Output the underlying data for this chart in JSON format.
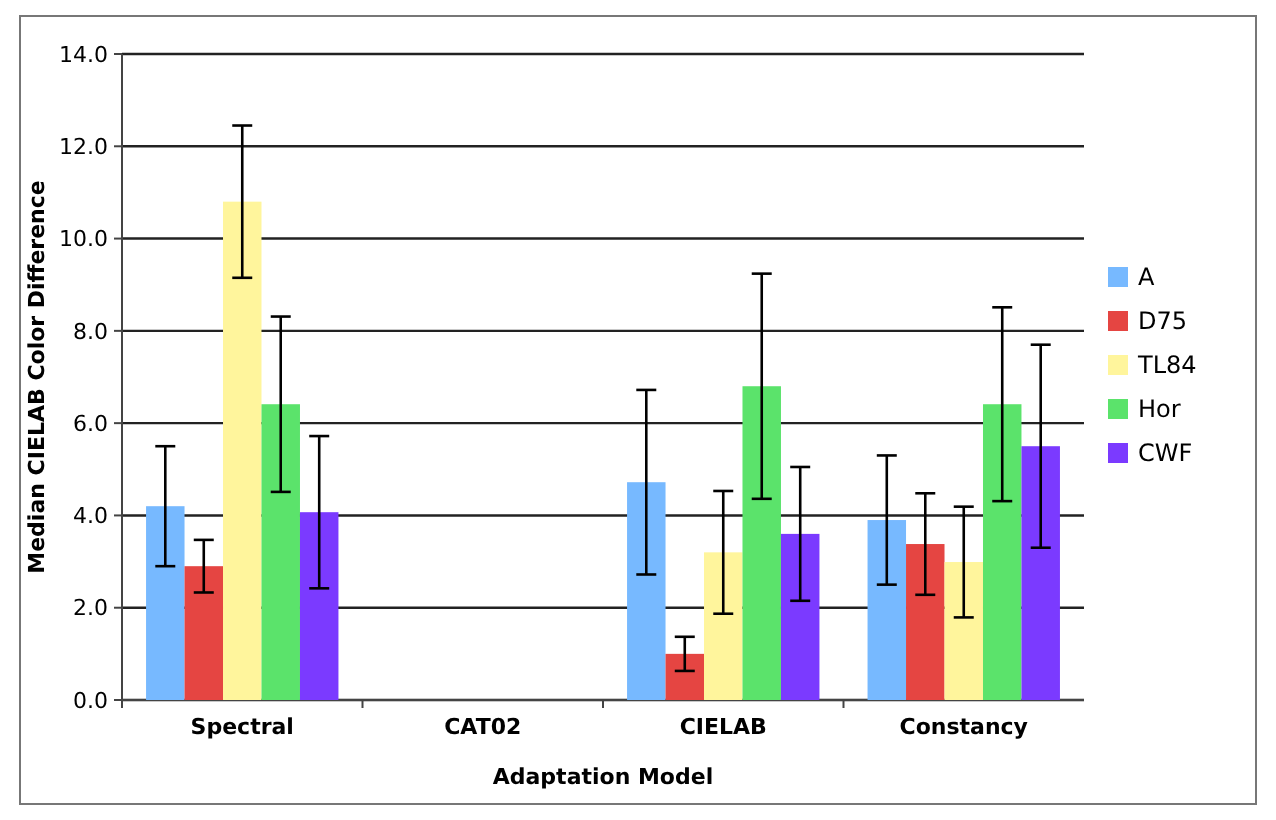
{
  "chart_data": {
    "type": "bar",
    "xlabel": "Adaptation Model",
    "ylabel": "Median CIELAB Color Difference",
    "categories": [
      "Spectral",
      "CAT02",
      "CIELAB",
      "Constancy"
    ],
    "series": [
      {
        "name": "A",
        "color": "#77b9ff",
        "values": [
          4.2,
          0,
          4.72,
          3.9
        ],
        "errors": [
          1.3,
          null,
          2.0,
          1.4
        ]
      },
      {
        "name": "D75",
        "color": "#e54542",
        "values": [
          2.9,
          0,
          1.0,
          3.38
        ],
        "errors": [
          0.57,
          null,
          0.37,
          1.1
        ]
      },
      {
        "name": "TL84",
        "color": "#fff59c",
        "values": [
          10.8,
          0,
          3.2,
          2.99
        ],
        "errors": [
          1.65,
          null,
          1.33,
          1.2
        ]
      },
      {
        "name": "Hor",
        "color": "#5be36b",
        "values": [
          6.41,
          0,
          6.8,
          6.41
        ],
        "errors": [
          1.9,
          null,
          2.44,
          2.1
        ]
      },
      {
        "name": "CWF",
        "color": "#7b3aff",
        "values": [
          4.07,
          0,
          3.6,
          5.5
        ],
        "errors": [
          1.65,
          null,
          1.45,
          2.2
        ]
      }
    ],
    "ylim": [
      0,
      14
    ],
    "yticks": [
      {
        "value": 0,
        "label": "0.0"
      },
      {
        "value": 2,
        "label": "2.0"
      },
      {
        "value": 4,
        "label": "4.0"
      },
      {
        "value": 6,
        "label": "6.0"
      },
      {
        "value": 8,
        "label": "8.0"
      },
      {
        "value": 10,
        "label": "10.0"
      },
      {
        "value": 12,
        "label": "12.0"
      },
      {
        "value": 14,
        "label": "14.0"
      }
    ],
    "grid": "y",
    "legend": "right"
  }
}
